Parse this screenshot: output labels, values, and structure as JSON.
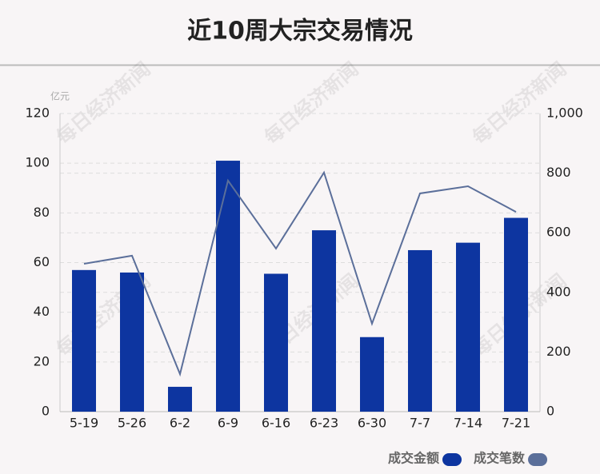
{
  "chart_data": {
    "type": "bar",
    "title": "近10周大宗交易情况",
    "y_unit": "亿元",
    "watermark": "每日经济新闻",
    "categories": [
      "5-19",
      "5-26",
      "6-2",
      "6-9",
      "6-16",
      "6-23",
      "6-30",
      "7-7",
      "7-14",
      "7-21"
    ],
    "series": [
      {
        "name": "成交金额",
        "type": "bar",
        "color": "#0d35a0",
        "values": [
          57,
          56,
          10,
          101,
          55.5,
          73,
          30,
          65,
          68,
          78
        ]
      },
      {
        "name": "成交笔数",
        "type": "line",
        "axis": "y2",
        "color": "#5b6f9a",
        "values": [
          496,
          523,
          126,
          775,
          547,
          802,
          295,
          732,
          756,
          670
        ]
      }
    ],
    "ylim": [
      0,
      120
    ],
    "yticks": [
      0,
      20,
      40,
      60,
      80,
      100,
      120
    ],
    "y2lim": [
      0,
      1000
    ],
    "y2ticks": [
      0,
      200,
      400,
      600,
      800,
      {
        "value": 1000,
        "label": "1,000"
      }
    ],
    "grid": true
  }
}
